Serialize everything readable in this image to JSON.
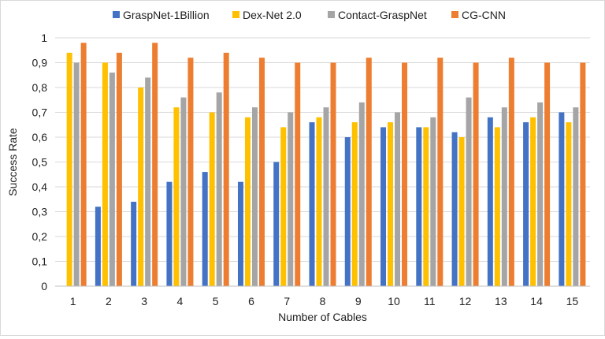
{
  "chart_data": {
    "type": "bar",
    "title": "",
    "xlabel": "Number of Cables",
    "ylabel": "Success Rate",
    "ylim": [
      0,
      1
    ],
    "yticks": [
      "0",
      "0,1",
      "0,2",
      "0,3",
      "0,4",
      "0,5",
      "0,6",
      "0,7",
      "0,8",
      "0,9",
      "1"
    ],
    "categories": [
      "1",
      "2",
      "3",
      "4",
      "5",
      "6",
      "7",
      "8",
      "9",
      "10",
      "11",
      "12",
      "13",
      "14",
      "15"
    ],
    "legend_position": "top",
    "series": [
      {
        "name": "GraspNet-1Billion",
        "color": "#4472C4",
        "values": [
          0,
          0.32,
          0.34,
          0.42,
          0.46,
          0.42,
          0.5,
          0.66,
          0.6,
          0.64,
          0.64,
          0.62,
          0.68,
          0.66,
          0.7
        ]
      },
      {
        "name": "Dex-Net 2.0",
        "color": "#FFC000",
        "values": [
          0.94,
          0.9,
          0.8,
          0.72,
          0.7,
          0.68,
          0.64,
          0.68,
          0.66,
          0.66,
          0.64,
          0.6,
          0.64,
          0.68,
          0.66
        ]
      },
      {
        "name": "Contact-GraspNet",
        "color": "#A5A5A5",
        "values": [
          0.9,
          0.86,
          0.84,
          0.76,
          0.78,
          0.72,
          0.7,
          0.72,
          0.74,
          0.7,
          0.68,
          0.76,
          0.72,
          0.74,
          0.72
        ]
      },
      {
        "name": "CG-CNN",
        "color": "#ED7D31",
        "values": [
          0.98,
          0.94,
          0.98,
          0.92,
          0.94,
          0.92,
          0.9,
          0.9,
          0.92,
          0.9,
          0.92,
          0.9,
          0.92,
          0.9,
          0.9
        ]
      }
    ]
  }
}
